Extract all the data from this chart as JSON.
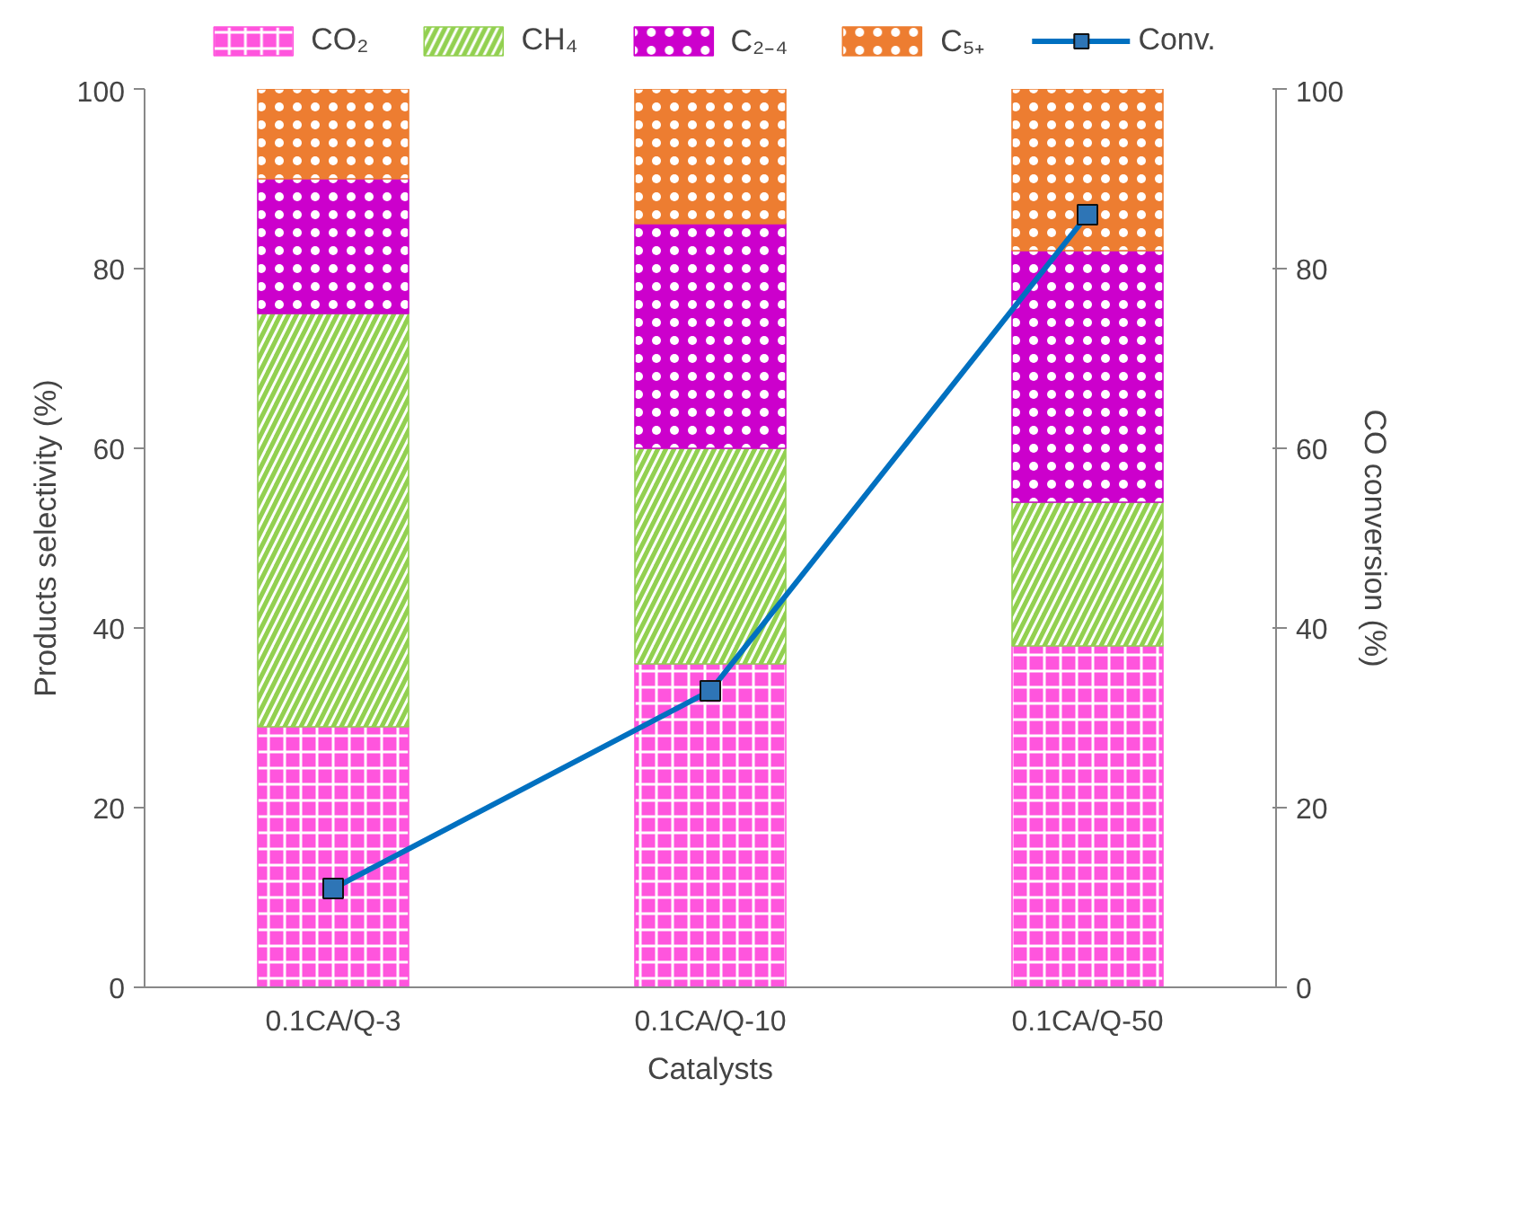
{
  "chart_data": {
    "type": "bar",
    "stacked": true,
    "xlabel": "Catalysts",
    "ylabel": "Products selectivity (%)",
    "y2label": "CO conversion (%)",
    "categories": [
      "0.1CA/Q-3",
      "0.1CA/Q-10",
      "0.1CA/Q-50"
    ],
    "series": [
      {
        "name": "CO₂",
        "color": "#ff55dd",
        "values": [
          29,
          36,
          38
        ]
      },
      {
        "name": "CH₄",
        "color": "#92d050",
        "values": [
          46,
          24,
          16
        ]
      },
      {
        "name": "C₂₋₄",
        "color": "#cc00cc",
        "values": [
          15,
          25,
          28
        ]
      },
      {
        "name": "C₅₊",
        "color": "#ed7d31",
        "values": [
          10,
          15,
          18
        ]
      },
      {
        "name": "Conv.",
        "type": "line",
        "axis": "y2",
        "color": "#0070c0",
        "marker": "square",
        "line_style": "solid",
        "values": [
          11,
          33,
          86
        ]
      }
    ],
    "ylim": [
      0,
      100
    ],
    "yticks": [
      0,
      20,
      40,
      60,
      80,
      100
    ],
    "y2lim": [
      0,
      100
    ],
    "y2ticks": [
      0,
      20,
      40,
      60,
      80,
      100
    ],
    "legend": "top",
    "grid": false
  }
}
